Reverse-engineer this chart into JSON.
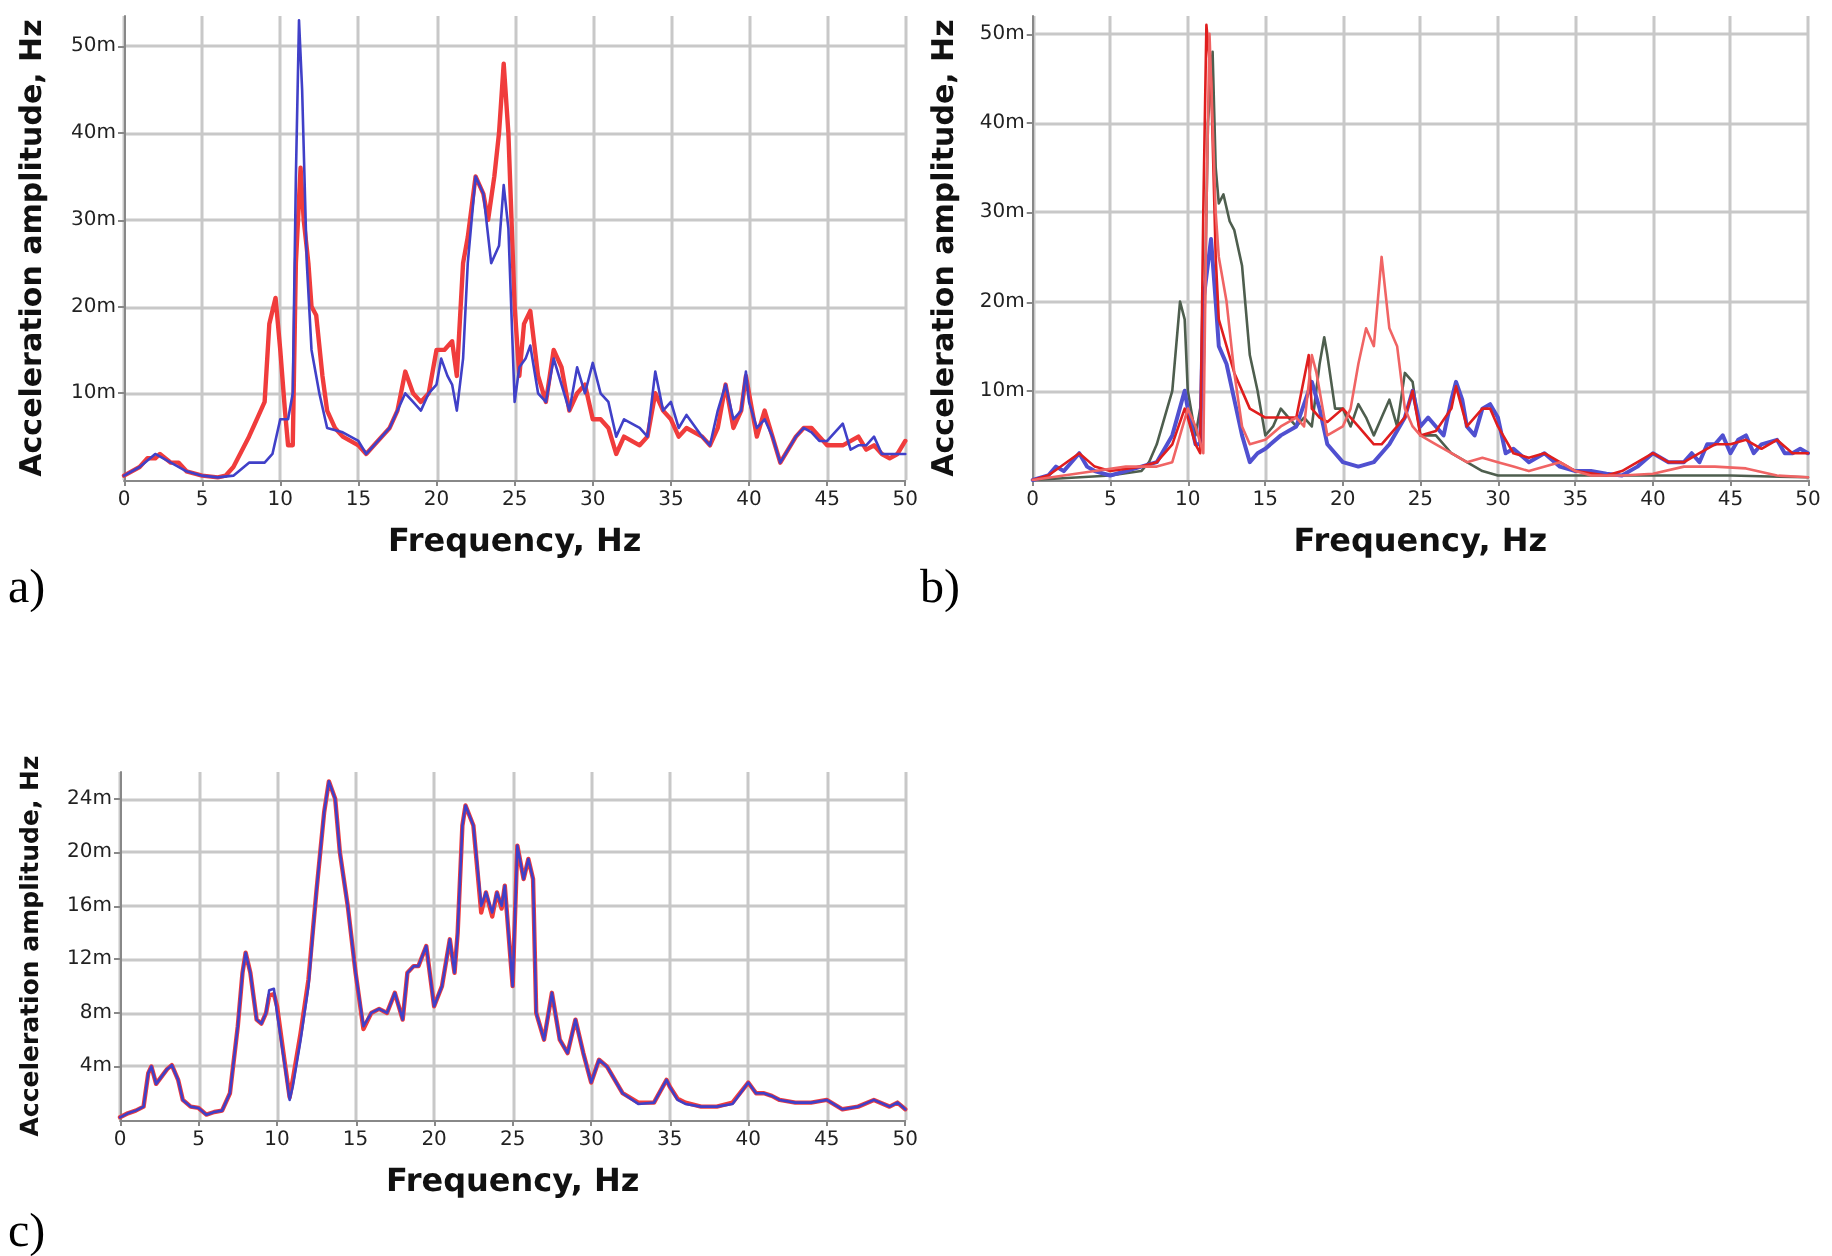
{
  "chart_data": [
    {
      "type": "line",
      "xlabel": "Frequency, Hz",
      "ylabel": "Acceleration amplitude, Hz",
      "annotations": [
        "a)"
      ],
      "xlim": [
        0,
        50
      ],
      "xticks": [
        0,
        5,
        10,
        15,
        20,
        25,
        30,
        35,
        40,
        45,
        50
      ],
      "ylim": [
        0,
        53.5
      ],
      "yticks": [
        {
          "value": 10,
          "label": "10m"
        },
        {
          "value": 20,
          "label": "20m"
        },
        {
          "value": 30,
          "label": "30m"
        },
        {
          "value": 40,
          "label": "40m"
        },
        {
          "value": 50,
          "label": "50m"
        }
      ],
      "grid": true,
      "marker": "none",
      "series": [
        {
          "color": "#f03c3c",
          "x": [
            0,
            1,
            1.5,
            2,
            2.3,
            3,
            3.5,
            4,
            5,
            6,
            6.5,
            7,
            8,
            9,
            9.3,
            9.7,
            10,
            10.3,
            10.5,
            10.8,
            11,
            11.3,
            11.5,
            11.8,
            12,
            12.3,
            12.7,
            13,
            13.5,
            14,
            15,
            15.5,
            16,
            17,
            17.5,
            18,
            18.5,
            19,
            19.5,
            20,
            20.5,
            21,
            21.3,
            21.7,
            22,
            22.5,
            23,
            23.3,
            23.7,
            24,
            24.3,
            24.6,
            25,
            25.3,
            25.6,
            26,
            26.5,
            27,
            27.5,
            28,
            28.5,
            29,
            29.5,
            30,
            30.5,
            31,
            31.5,
            32,
            33,
            33.5,
            34,
            34.5,
            35,
            35.5,
            36,
            37,
            37.5,
            38,
            38.5,
            39,
            39.5,
            39.8,
            40,
            40.5,
            41,
            41.5,
            42,
            43,
            43.5,
            44,
            44.5,
            45,
            46,
            47,
            47.5,
            48,
            48.5,
            49,
            49.5,
            50
          ],
          "values": [
            0.5,
            1.5,
            2.5,
            2.5,
            3,
            2,
            2,
            1,
            0.5,
            0.3,
            0.5,
            1.5,
            5,
            9,
            18,
            21,
            15,
            8,
            4,
            4,
            25,
            36,
            30,
            25,
            20,
            19,
            12,
            8,
            6,
            5,
            4,
            3,
            4,
            6,
            8,
            12.5,
            10,
            9,
            10,
            15,
            15,
            16,
            12,
            25,
            28,
            35,
            33,
            30,
            35,
            40,
            48,
            40,
            20,
            12,
            18,
            19.5,
            12,
            9,
            15,
            13,
            8,
            10,
            11,
            7,
            7,
            6,
            3,
            5,
            4,
            5,
            10,
            8,
            7,
            5,
            6,
            5,
            4,
            6,
            11,
            6,
            8,
            12,
            10,
            5,
            8,
            5,
            2,
            5,
            6,
            6,
            5,
            4,
            4,
            5,
            3.5,
            4,
            3,
            2.5,
            3,
            4.5
          ]
        },
        {
          "color": "#4040c8",
          "x": [
            0,
            1,
            2,
            3,
            4,
            5,
            6,
            7,
            8,
            9,
            9.5,
            10,
            10.5,
            10.8,
            11,
            11.2,
            11.4,
            11.7,
            12,
            12.5,
            13,
            14,
            15,
            15.5,
            16,
            17,
            17.5,
            18,
            18.5,
            19,
            19.5,
            20,
            20.3,
            20.7,
            21,
            21.3,
            21.7,
            22,
            22.5,
            23,
            23.5,
            24,
            24.3,
            24.6,
            25,
            25.3,
            25.7,
            26,
            26.5,
            27,
            27.5,
            28,
            28.5,
            29,
            29.5,
            30,
            30.5,
            31,
            31.5,
            32,
            33,
            33.5,
            34,
            34.5,
            35,
            35.5,
            36,
            37,
            37.5,
            38,
            38.5,
            39,
            39.5,
            39.8,
            40,
            40.5,
            41,
            41.5,
            42,
            43,
            43.5,
            44,
            44.5,
            45,
            46,
            46.5,
            47,
            47.5,
            48,
            48.5,
            49,
            50
          ],
          "values": [
            0.5,
            1.5,
            3,
            2,
            1,
            0.5,
            0.3,
            0.5,
            2,
            2,
            3,
            7,
            7,
            10,
            35,
            53,
            45,
            25,
            15,
            10,
            6,
            5.5,
            4.5,
            3,
            4,
            6,
            8,
            10,
            9,
            8,
            10,
            11,
            14,
            12,
            11,
            8,
            14,
            25,
            35,
            33,
            25,
            27,
            34,
            29,
            9,
            13,
            14,
            15.5,
            10,
            9,
            14,
            11,
            8,
            13,
            10,
            13.5,
            10,
            9,
            5,
            7,
            6,
            5,
            12.5,
            8,
            9,
            6,
            7.5,
            5,
            4,
            8,
            11,
            7,
            8,
            12.5,
            9,
            6,
            7,
            5,
            2,
            5,
            6,
            5.5,
            4.5,
            4.5,
            6.5,
            3.5,
            4,
            4,
            5,
            3,
            3,
            3
          ]
        }
      ]
    },
    {
      "type": "line",
      "xlabel": "Frequency, Hz",
      "ylabel": "Acceleration amplitude, Hz",
      "annotations": [
        "b)"
      ],
      "xlim": [
        0,
        50
      ],
      "xticks": [
        0,
        5,
        10,
        15,
        20,
        25,
        30,
        35,
        40,
        45,
        50
      ],
      "ylim": [
        0,
        52
      ],
      "yticks": [
        {
          "value": 10,
          "label": "10m"
        },
        {
          "value": 20,
          "label": "20m"
        },
        {
          "value": 30,
          "label": "30m"
        },
        {
          "value": 40,
          "label": "40m"
        },
        {
          "value": 50,
          "label": "50m"
        }
      ],
      "grid": true,
      "marker": "none",
      "series": [
        {
          "color": "#4e5e4e",
          "x": [
            0,
            5,
            7,
            7.5,
            8,
            9,
            9.5,
            9.8,
            10,
            10.5,
            11,
            11.3,
            11.6,
            11.8,
            12,
            12.3,
            12.7,
            13,
            13.5,
            14,
            14.5,
            15,
            15.5,
            16,
            16.5,
            17,
            17.5,
            18,
            18.5,
            18.8,
            19,
            19.5,
            20,
            20.5,
            21,
            21.5,
            22,
            22.5,
            23,
            23.5,
            24,
            24.5,
            25,
            26,
            27,
            28,
            29,
            30,
            35,
            40,
            45,
            50
          ],
          "values": [
            0,
            0.5,
            1,
            2,
            4,
            10,
            20,
            18,
            10,
            5,
            10,
            40,
            48,
            35,
            31,
            32,
            29,
            28,
            24,
            14,
            10,
            5,
            6,
            8,
            7,
            6,
            7,
            6,
            13,
            16,
            14,
            8,
            8,
            6,
            8.5,
            7,
            5,
            7,
            9,
            6,
            12,
            11,
            5,
            5,
            3,
            2,
            1,
            0.5,
            0.5,
            0.5,
            0.5,
            0.3
          ]
        },
        {
          "color": "#5050d0",
          "x": [
            0,
            1,
            1.5,
            2,
            3,
            3.5,
            4,
            5,
            6,
            7,
            8,
            9,
            9.8,
            10,
            10.5,
            10.8,
            11,
            11.5,
            11.8,
            12,
            12.5,
            13,
            13.5,
            14,
            14.5,
            15,
            16,
            17,
            18,
            18.5,
            19,
            19.5,
            20,
            21,
            22,
            23,
            24,
            24.5,
            25,
            25.5,
            26,
            26.5,
            27,
            27.3,
            27.7,
            28,
            28.5,
            29,
            29.5,
            30,
            30.5,
            31,
            32,
            33,
            34,
            35,
            36,
            37,
            38,
            39,
            40,
            41,
            42,
            42.5,
            43,
            43.5,
            44,
            44.5,
            45,
            45.5,
            46,
            46.5,
            47,
            48,
            48.5,
            49,
            49.5,
            50
          ],
          "values": [
            0,
            0.5,
            1.5,
            1,
            3,
            1.5,
            1,
            0.5,
            1,
            1.5,
            2,
            5,
            10,
            8,
            4,
            4,
            20,
            27,
            20,
            15,
            13,
            9,
            5,
            2,
            3,
            3.5,
            5,
            6,
            11,
            8,
            4,
            3,
            2,
            1.5,
            2,
            4,
            7,
            10,
            6,
            7,
            6,
            5,
            9,
            11,
            9,
            6,
            5,
            8,
            8.5,
            7,
            3,
            3.5,
            2,
            3,
            1.5,
            1,
            1,
            0.7,
            0.5,
            1.5,
            3,
            2,
            2,
            3,
            2,
            4,
            4,
            5,
            3,
            4.5,
            5,
            3,
            4,
            4.5,
            3,
            3,
            3.5,
            3
          ]
        },
        {
          "color": "#e01e1e",
          "x": [
            0,
            1,
            3,
            4,
            5,
            7,
            8,
            9,
            9.8,
            10,
            10.5,
            10.8,
            11,
            11.2,
            11.5,
            11.8,
            12,
            12.5,
            13,
            14,
            15,
            16,
            17,
            17.8,
            18,
            18.5,
            19,
            20,
            20.5,
            21,
            21.5,
            22,
            22.5,
            23,
            23.5,
            24,
            24.5,
            25,
            26,
            27,
            27.3,
            28,
            29,
            29.5,
            30,
            31,
            32,
            33,
            34,
            35,
            37,
            38,
            40,
            41,
            42,
            43,
            44,
            45,
            46,
            47,
            48,
            49,
            50
          ],
          "values": [
            0,
            0.5,
            3,
            1.5,
            1,
            1.5,
            2,
            4,
            8,
            7,
            4,
            3,
            30,
            51,
            45,
            25,
            18,
            15,
            12,
            8,
            7,
            7,
            7,
            14,
            8,
            7,
            6.5,
            8,
            7,
            6,
            5,
            4,
            4,
            5,
            6,
            7,
            10,
            5,
            5.5,
            8,
            10.5,
            6,
            8,
            8,
            6,
            3,
            2.5,
            3,
            2,
            1,
            0.5,
            1,
            3,
            2,
            2,
            3,
            4,
            4,
            4.5,
            3.5,
            4.5,
            3,
            3
          ]
        },
        {
          "color": "#f06464",
          "x": [
            0,
            2,
            4,
            6,
            8,
            9,
            9.5,
            10,
            10.5,
            11,
            11.2,
            11.4,
            11.6,
            11.8,
            12,
            12.5,
            13,
            13.5,
            14,
            15,
            16,
            17,
            17.5,
            18,
            18.3,
            18.5,
            19,
            20,
            20.5,
            21,
            21.5,
            22,
            22.5,
            23,
            23.5,
            24,
            24.5,
            25,
            26,
            27,
            28,
            29,
            30,
            31,
            32,
            34,
            35,
            36,
            38,
            40,
            42,
            44,
            46,
            48,
            50
          ],
          "values": [
            0,
            0.5,
            1,
            1.5,
            1.5,
            2,
            5,
            8,
            6,
            3,
            30,
            50,
            40,
            30,
            25,
            20,
            12,
            6,
            4,
            4.5,
            6,
            7,
            6,
            14,
            12,
            10,
            5,
            6,
            8,
            13,
            17,
            15,
            25,
            17,
            15,
            8,
            6,
            5,
            4,
            3,
            2,
            2.5,
            2,
            1.5,
            1,
            2,
            1,
            0.5,
            0.5,
            0.7,
            1.5,
            1.5,
            1.3,
            0.5,
            0.3
          ]
        }
      ]
    },
    {
      "type": "line",
      "xlabel": "Frequency, Hz",
      "ylabel": "Acceleration amplitude, Hz",
      "annotations": [
        "c)"
      ],
      "xlim": [
        0,
        50
      ],
      "xticks": [
        0,
        5,
        10,
        15,
        20,
        25,
        30,
        35,
        40,
        45,
        50
      ],
      "ylim": [
        0,
        26
      ],
      "yticks": [
        {
          "value": 4,
          "label": "4m"
        },
        {
          "value": 8,
          "label": "8m"
        },
        {
          "value": 12,
          "label": "12m"
        },
        {
          "value": 16,
          "label": "16m"
        },
        {
          "value": 20,
          "label": "20m"
        },
        {
          "value": 24,
          "label": "24m"
        }
      ],
      "grid": true,
      "marker": "none",
      "series": [
        {
          "color": "#f03c3c",
          "x": [
            0,
            0.5,
            1,
            1.5,
            1.8,
            2,
            2.3,
            3,
            3.3,
            3.7,
            4,
            4.5,
            5,
            5.5,
            6,
            6.5,
            7,
            7.5,
            7.8,
            8,
            8.3,
            8.7,
            9,
            9.3,
            9.5,
            9.8,
            10,
            10.5,
            10.8,
            11,
            11.5,
            12,
            12.5,
            13,
            13.3,
            13.7,
            14,
            14.5,
            15,
            15.5,
            16,
            16.5,
            17,
            17.5,
            18,
            18.3,
            18.7,
            19,
            19.5,
            20,
            20.5,
            21,
            21.3,
            21.5,
            21.8,
            22,
            22.5,
            23,
            23.3,
            23.7,
            24,
            24.3,
            24.5,
            25,
            25.3,
            25.7,
            26,
            26.3,
            26.5,
            27,
            27.5,
            28,
            28.5,
            29,
            29.5,
            30,
            30.5,
            31,
            32,
            33,
            34,
            34.8,
            35,
            35.5,
            36,
            37,
            38,
            39,
            40,
            40.5,
            41,
            41.5,
            42,
            43,
            44,
            45,
            46,
            47,
            48,
            49,
            49.5,
            50
          ],
          "values": [
            0.2,
            0.5,
            0.7,
            1,
            3.5,
            4,
            2.7,
            3.8,
            4.1,
            3,
            1.5,
            1,
            0.9,
            0.4,
            0.6,
            0.7,
            2,
            7,
            11,
            12.5,
            11,
            7.5,
            7.2,
            8,
            9.3,
            9.4,
            8.5,
            4.2,
            1.7,
            3,
            6.5,
            10.5,
            17,
            23,
            25.3,
            24,
            20,
            16,
            11,
            6.8,
            8,
            8.3,
            8,
            9.5,
            7.5,
            11,
            11.5,
            11.5,
            13,
            8.5,
            10,
            13.5,
            11,
            14,
            22,
            23.5,
            22,
            15.5,
            17,
            15.2,
            17,
            15.8,
            17.5,
            10,
            20.5,
            18,
            19.5,
            18,
            8,
            6,
            9.5,
            6,
            5,
            7.5,
            5,
            2.8,
            4.5,
            4,
            2,
            1.3,
            1.3,
            3,
            2.5,
            1.6,
            1.3,
            1,
            1,
            1.3,
            2.8,
            2,
            2,
            1.8,
            1.5,
            1.3,
            1.3,
            1.5,
            0.8,
            1,
            1.5,
            1,
            1.3,
            0.8
          ]
        },
        {
          "color": "#4040c8",
          "x": [
            0,
            0.5,
            1,
            1.5,
            1.8,
            2,
            2.3,
            3,
            3.3,
            3.7,
            4,
            4.5,
            5,
            5.5,
            6,
            6.5,
            7,
            7.5,
            7.8,
            8,
            8.3,
            8.7,
            9,
            9.3,
            9.5,
            9.8,
            10,
            10.5,
            10.8,
            11,
            11.5,
            12,
            12.5,
            13,
            13.3,
            13.7,
            14,
            14.5,
            15,
            15.5,
            16,
            16.5,
            17,
            17.5,
            18,
            18.3,
            18.7,
            19,
            19.5,
            20,
            20.5,
            21,
            21.3,
            21.5,
            21.8,
            22,
            22.5,
            23,
            23.3,
            23.7,
            24,
            24.3,
            24.5,
            25,
            25.3,
            25.7,
            26,
            26.3,
            26.5,
            27,
            27.5,
            28,
            28.5,
            29,
            29.5,
            30,
            30.5,
            31,
            32,
            33,
            34,
            34.8,
            35,
            35.5,
            36,
            37,
            38,
            39,
            40,
            40.5,
            41,
            41.5,
            42,
            43,
            44,
            45,
            46,
            47,
            48,
            49,
            49.5,
            50
          ],
          "values": [
            0.2,
            0.5,
            0.7,
            1,
            3.5,
            4,
            2.7,
            3.8,
            4.1,
            3,
            1.5,
            1,
            0.9,
            0.4,
            0.6,
            0.7,
            2,
            7,
            11,
            12.5,
            11,
            7.5,
            7.2,
            8,
            9.7,
            9.8,
            8,
            4,
            1.5,
            2.5,
            6,
            10,
            17,
            23,
            25.3,
            24,
            20,
            16,
            11,
            7,
            8,
            8.3,
            8,
            9.5,
            7.5,
            11,
            11.5,
            11.5,
            13,
            8.5,
            10,
            13.5,
            11,
            14,
            22,
            23.5,
            22,
            16,
            17,
            15.5,
            17,
            16,
            17.5,
            10,
            20.5,
            18,
            19.5,
            18,
            8,
            6,
            9.5,
            6,
            5,
            7.5,
            5,
            2.8,
            4.5,
            4,
            2,
            1.2,
            1.3,
            3,
            2.5,
            1.5,
            1.2,
            1,
            1,
            1.2,
            2.8,
            2,
            2,
            1.8,
            1.5,
            1.3,
            1.3,
            1.5,
            0.8,
            1,
            1.5,
            1,
            1.3,
            0.8
          ]
        }
      ]
    }
  ]
}
